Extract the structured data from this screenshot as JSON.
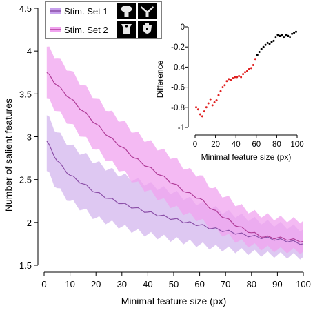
{
  "chart_data": [
    {
      "type": "line",
      "xlabel": "Minimal feature size (px)",
      "ylabel": "Number of salient features",
      "xlim": [
        0,
        100
      ],
      "ylim": [
        1.5,
        4.5
      ],
      "xticks": [
        "0",
        "10",
        "20",
        "30",
        "40",
        "50",
        "60",
        "70",
        "80",
        "90",
        "100"
      ],
      "yticks": [
        "1.5",
        "2",
        "2.5",
        "3",
        "3.5",
        "4",
        "4.5"
      ],
      "legend_position": "top-left",
      "series": [
        {
          "name": "Stim. Set 1",
          "line_color": "#8b4fa8",
          "band_color": "#d3b6ee",
          "x": [
            1,
            5,
            10,
            15,
            20,
            25,
            30,
            35,
            40,
            45,
            50,
            55,
            60,
            65,
            70,
            75,
            80,
            85,
            90,
            95,
            100
          ],
          "mean": [
            2.95,
            2.72,
            2.55,
            2.45,
            2.35,
            2.28,
            2.22,
            2.17,
            2.12,
            2.08,
            2.04,
            2.0,
            1.97,
            1.93,
            1.9,
            1.87,
            1.84,
            1.82,
            1.8,
            1.78,
            1.75
          ],
          "upper": [
            3.25,
            3.05,
            2.9,
            2.8,
            2.7,
            2.62,
            2.55,
            2.5,
            2.45,
            2.4,
            2.35,
            2.28,
            2.22,
            2.17,
            2.12,
            2.08,
            2.04,
            2.0,
            1.98,
            1.95,
            1.92
          ],
          "lower": [
            2.6,
            2.4,
            2.25,
            2.15,
            2.05,
            2.0,
            1.95,
            1.9,
            1.86,
            1.83,
            1.8,
            1.77,
            1.74,
            1.71,
            1.69,
            1.67,
            1.65,
            1.63,
            1.62,
            1.61,
            1.6
          ]
        },
        {
          "name": "Stim. Set 2",
          "line_color": "#b03c98",
          "band_color": "#f0a3ef",
          "x": [
            1,
            5,
            10,
            15,
            20,
            25,
            30,
            35,
            40,
            45,
            50,
            55,
            60,
            65,
            70,
            75,
            80,
            85,
            90,
            95,
            100
          ],
          "mean": [
            3.75,
            3.6,
            3.45,
            3.3,
            3.15,
            3.0,
            2.88,
            2.75,
            2.65,
            2.55,
            2.45,
            2.35,
            2.28,
            2.15,
            2.05,
            1.95,
            1.88,
            1.83,
            1.82,
            1.8,
            1.78
          ],
          "upper": [
            4.05,
            3.92,
            3.77,
            3.6,
            3.45,
            3.3,
            3.18,
            3.05,
            2.95,
            2.85,
            2.75,
            2.62,
            2.55,
            2.4,
            2.3,
            2.2,
            2.12,
            2.08,
            2.05,
            2.03,
            2.02
          ],
          "lower": [
            3.45,
            3.3,
            3.15,
            3.0,
            2.85,
            2.72,
            2.6,
            2.47,
            2.37,
            2.27,
            2.18,
            2.1,
            2.03,
            1.93,
            1.85,
            1.78,
            1.73,
            1.7,
            1.68,
            1.67,
            1.66
          ]
        }
      ]
    },
    {
      "type": "scatter",
      "xlabel": "Minimal feature size (px)",
      "ylabel": "Difference",
      "xlim": [
        0,
        100
      ],
      "ylim": [
        -1,
        0
      ],
      "xticks": [
        "0",
        "20",
        "40",
        "60",
        "80",
        "100"
      ],
      "yticks": [
        "-1",
        "-0.8",
        "-0.6",
        "-0.4",
        "-0.2",
        "0"
      ],
      "significant_color": "#e02020",
      "nonsignificant_color": "#000000",
      "x": [
        1,
        3,
        5,
        7,
        9,
        11,
        13,
        15,
        17,
        19,
        21,
        23,
        25,
        27,
        29,
        31,
        33,
        35,
        37,
        39,
        41,
        43,
        45,
        47,
        49,
        51,
        53,
        55,
        57,
        59,
        61,
        63,
        65,
        67,
        69,
        71,
        73,
        75,
        77,
        79,
        81,
        83,
        85,
        87,
        89,
        91,
        93,
        95,
        97,
        99
      ],
      "y": [
        -0.8,
        -0.82,
        -0.87,
        -0.89,
        -0.84,
        -0.8,
        -0.76,
        -0.72,
        -0.78,
        -0.75,
        -0.73,
        -0.68,
        -0.64,
        -0.6,
        -0.58,
        -0.54,
        -0.52,
        -0.53,
        -0.51,
        -0.5,
        -0.5,
        -0.49,
        -0.5,
        -0.47,
        -0.45,
        -0.44,
        -0.42,
        -0.41,
        -0.38,
        -0.32,
        -0.28,
        -0.25,
        -0.22,
        -0.2,
        -0.18,
        -0.16,
        -0.17,
        -0.15,
        -0.14,
        -0.1,
        -0.08,
        -0.09,
        -0.08,
        -0.1,
        -0.08,
        -0.09,
        -0.1,
        -0.07,
        -0.06,
        -0.05
      ],
      "significant": [
        true,
        true,
        true,
        true,
        true,
        true,
        true,
        true,
        true,
        true,
        true,
        true,
        true,
        true,
        true,
        true,
        true,
        true,
        true,
        true,
        true,
        true,
        true,
        true,
        true,
        true,
        true,
        true,
        true,
        true,
        false,
        false,
        false,
        false,
        false,
        false,
        false,
        false,
        false,
        false,
        false,
        false,
        false,
        false,
        false,
        false,
        false,
        false,
        false,
        false
      ]
    }
  ]
}
